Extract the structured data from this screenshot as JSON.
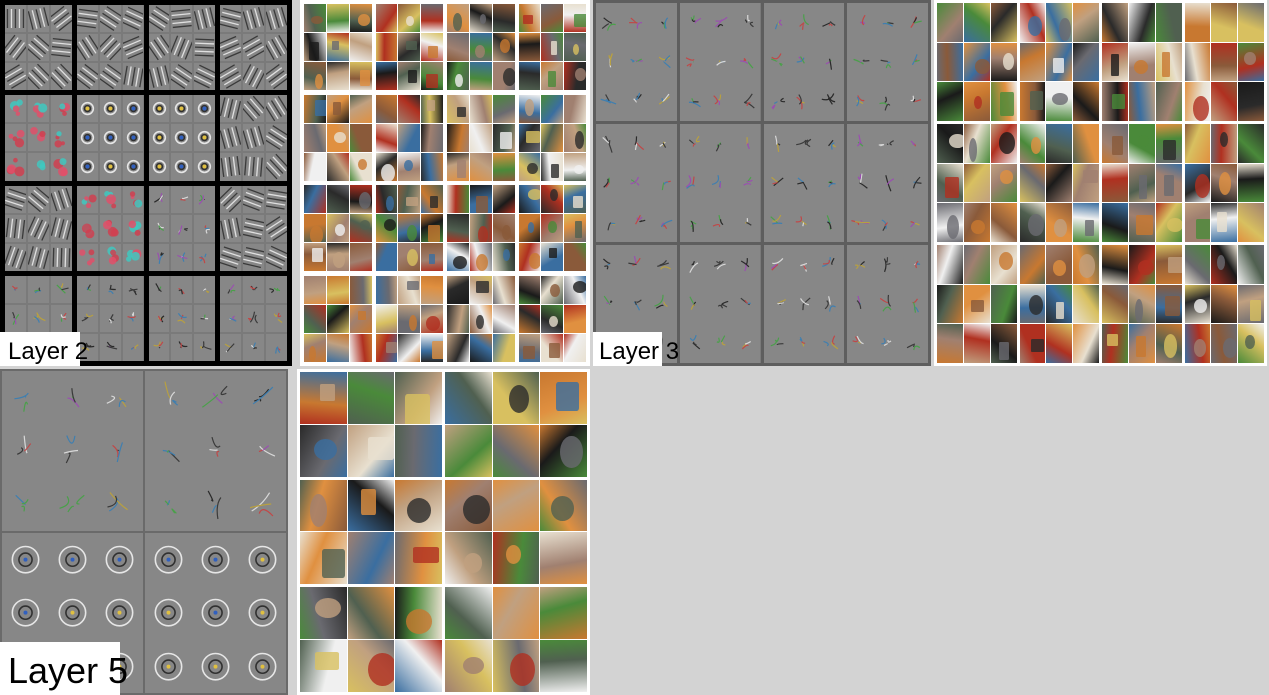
{
  "figure": {
    "labels": {
      "layer2": "Layer 2",
      "layer3": "Layer 3",
      "layer5": "Layer 5"
    }
  },
  "panels": [
    {
      "id": "layer2-deconv",
      "kind": "deconvolution filter visualizations",
      "layer": "Layer 2",
      "groups": "4x4",
      "tiles_per_group": "3x3"
    },
    {
      "id": "layer2-patches",
      "kind": "top-activating image patches",
      "layer": "Layer 2",
      "groups": "4x4",
      "tiles_per_group": "3x3"
    },
    {
      "id": "layer3-deconv",
      "kind": "deconvolution filter visualizations",
      "layer": "Layer 3",
      "groups": "3x4",
      "tiles_per_group": "3x3"
    },
    {
      "id": "layer3-patches",
      "kind": "top-activating image patches",
      "layer": "Layer 3",
      "groups": "3x4",
      "tiles_per_group": "3x3"
    },
    {
      "id": "layer5-deconv",
      "kind": "deconvolution filter visualizations",
      "layer": "Layer 5",
      "groups": "2x2",
      "tiles_per_group": "3x3"
    },
    {
      "id": "layer5-patches",
      "kind": "top-activating image patches",
      "layer": "Layer 5",
      "groups": "2x2",
      "tiles_per_group": "3x3"
    }
  ],
  "colors": {
    "background": "#d3d3d3",
    "deconv_gray": "#878787",
    "layer2_frame": "#000000",
    "divider": "#5e5e5e"
  }
}
